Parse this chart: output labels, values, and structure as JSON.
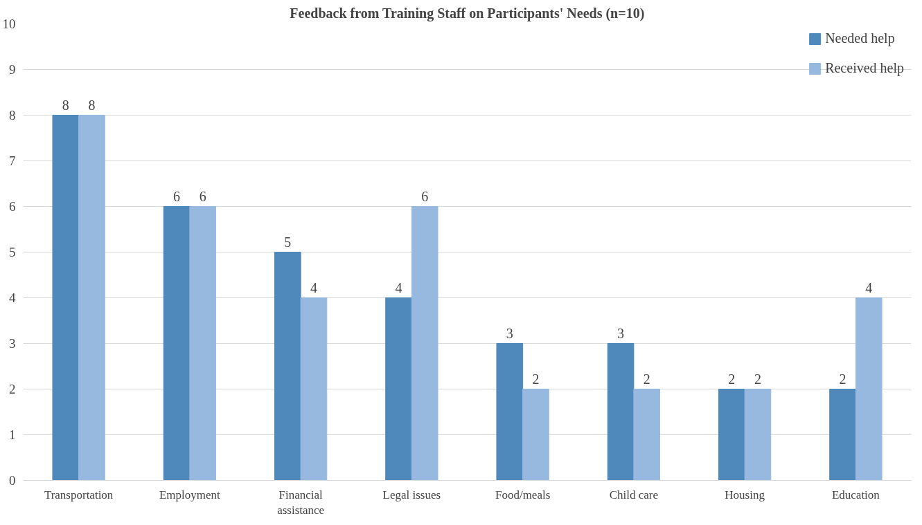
{
  "chart_data": {
    "type": "bar",
    "title": "Feedback from Training Staff on Participants' Needs (n=10)",
    "categories": [
      "Transportation",
      "Employment",
      "Financial assistance",
      "Legal issues",
      "Food/meals",
      "Child care",
      "Housing",
      "Education"
    ],
    "series": [
      {
        "name": "Needed help",
        "color": "#4f88bb",
        "values": [
          8,
          6,
          5,
          4,
          3,
          3,
          2,
          2
        ]
      },
      {
        "name": "Received help",
        "color": "#98b9df",
        "values": [
          8,
          6,
          4,
          6,
          2,
          2,
          2,
          4
        ]
      }
    ],
    "ylim": [
      0,
      10
    ],
    "yticks": [
      0,
      1,
      2,
      3,
      4,
      5,
      6,
      7,
      8,
      9,
      10
    ],
    "grid": "y",
    "legend": "top right",
    "data_labels": true
  }
}
